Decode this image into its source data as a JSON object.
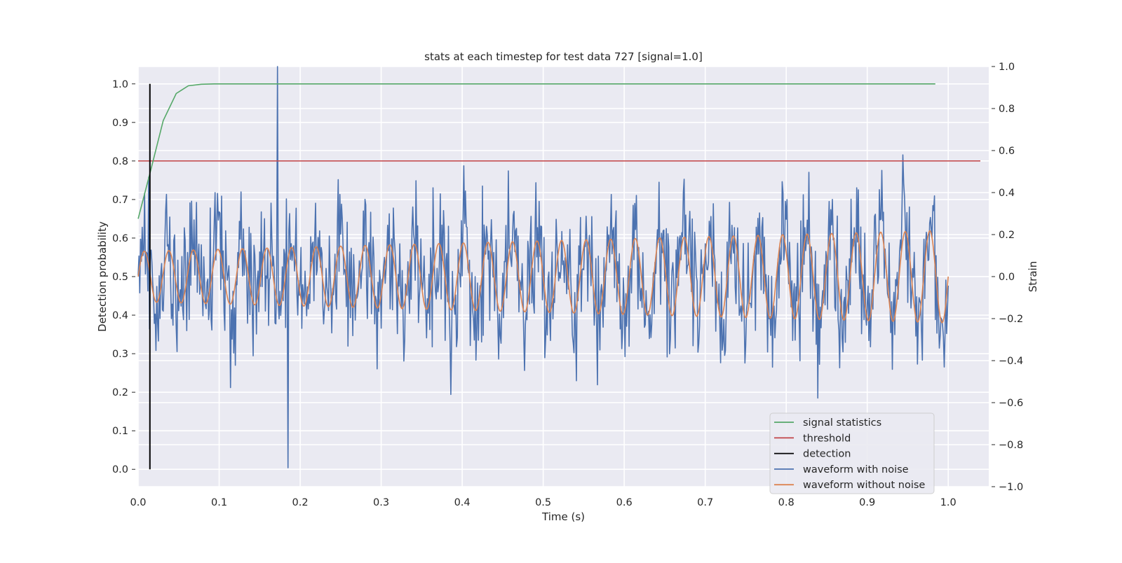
{
  "chart_data": {
    "type": "line",
    "title": "stats at each timestep for test data 727 [signal=1.0]",
    "xlabel": "Time (s)",
    "ylabel_left": "Detection probability",
    "ylabel_right": "Strain",
    "xlim": [
      0.0,
      1.05
    ],
    "ylim_left": [
      -0.045,
      1.045
    ],
    "ylim_right": [
      -1.0,
      1.0
    ],
    "x_ticks": [
      0.0,
      0.1,
      0.2,
      0.3,
      0.4,
      0.5,
      0.6,
      0.7,
      0.8,
      0.9,
      1.0
    ],
    "x_tick_labels": [
      "0.0",
      "0.1",
      "0.2",
      "0.3",
      "0.4",
      "0.5",
      "0.6",
      "0.7",
      "0.8",
      "0.9",
      "1.0"
    ],
    "y_left_ticks": [
      0.0,
      0.1,
      0.2,
      0.3,
      0.4,
      0.5,
      0.6,
      0.7,
      0.8,
      0.9,
      1.0
    ],
    "y_left_tick_labels": [
      "0.0",
      "0.1",
      "0.2",
      "0.3",
      "0.4",
      "0.5",
      "0.6",
      "0.7",
      "0.8",
      "0.9",
      "1.0"
    ],
    "y_right_ticks": [
      1.0,
      0.8,
      0.6,
      0.4,
      0.2,
      0.0,
      -0.2,
      -0.4,
      -0.6,
      -0.8,
      -1.0
    ],
    "y_right_tick_labels": [
      "1.0",
      "0.8",
      "0.6",
      "0.4",
      "0.2",
      "0.0",
      "−0.2",
      "−0.4",
      "−0.6",
      "−0.8",
      "−1.0"
    ],
    "grid": true,
    "legend_position": "lower-right",
    "series": [
      {
        "name": "signal statistics",
        "axis": "left",
        "color": "#55a868",
        "x": [
          0.0,
          0.016,
          0.031,
          0.047,
          0.062,
          0.078,
          0.094,
          0.2,
          0.4,
          0.6,
          0.8,
          0.984
        ],
        "y": [
          0.65,
          0.78,
          0.905,
          0.975,
          0.995,
          0.999,
          1.0,
          1.0,
          1.0,
          1.0,
          1.0,
          1.0
        ]
      },
      {
        "name": "threshold",
        "axis": "left",
        "color": "#c44e52",
        "x": [
          0.0,
          1.05
        ],
        "y": [
          0.8,
          0.8
        ]
      },
      {
        "name": "detection",
        "axis": "left",
        "color": "#000000",
        "x": [
          0.0145,
          0.0145
        ],
        "y": [
          0.0,
          1.0
        ]
      },
      {
        "name": "waveform with noise",
        "axis": "right",
        "color": "#4c72b0",
        "x": [
          0.0,
          1.0
        ],
        "generator": "noisy strain, ~1000 samples, amplitude about ±0.4, extremes ≈1.0 at t=0.172 and ≈−0.91 at t=0.185",
        "seed": 727
      },
      {
        "name": "waveform without noise",
        "axis": "right",
        "color": "#dd8452",
        "x": [
          0.0,
          1.0
        ],
        "y_expr": "sinusoid ~33 cycles, amplitude 0.12 at t=0 rising to 0.22 at t=1",
        "amplitude_start": 0.12,
        "amplitude_end": 0.22,
        "cycles": 33
      }
    ]
  }
}
